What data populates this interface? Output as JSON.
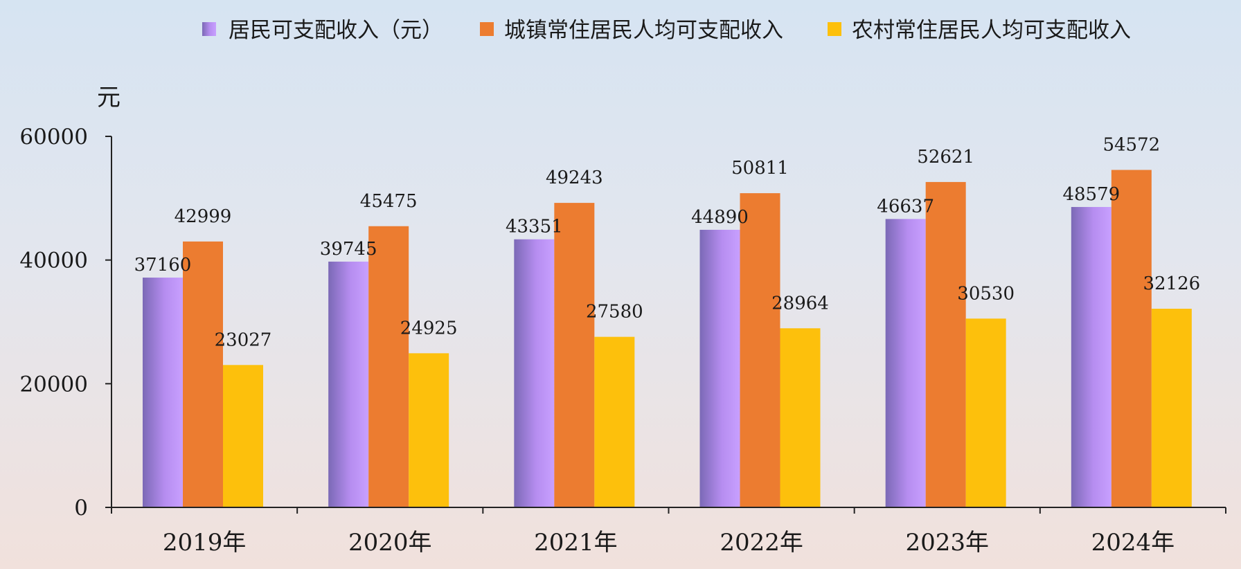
{
  "chart_data": {
    "type": "bar",
    "categories": [
      "2019年",
      "2020年",
      "2021年",
      "2022年",
      "2023年",
      "2024年"
    ],
    "series": [
      {
        "name": "居民可支配收入（元）",
        "values": [
          37160,
          39745,
          43351,
          44890,
          46637,
          48579
        ],
        "color": "#b98cf0"
      },
      {
        "name": "城镇常住居民人均可支配收入",
        "values": [
          42999,
          45475,
          49243,
          50811,
          52621,
          54572
        ],
        "color": "#ec7c30"
      },
      {
        "name": "农村常住居民人均可支配收入",
        "values": [
          23027,
          24925,
          27580,
          28964,
          30530,
          32126
        ],
        "color": "#fdc00c"
      }
    ],
    "y_unit": "元",
    "yticks": [
      0,
      20000,
      40000,
      60000
    ],
    "ylim": [
      0,
      60000
    ],
    "legend_position": "top"
  },
  "colors": {
    "axis": "#222222",
    "purple_dark": "#7c68b8",
    "purple_light": "#c79cff"
  }
}
